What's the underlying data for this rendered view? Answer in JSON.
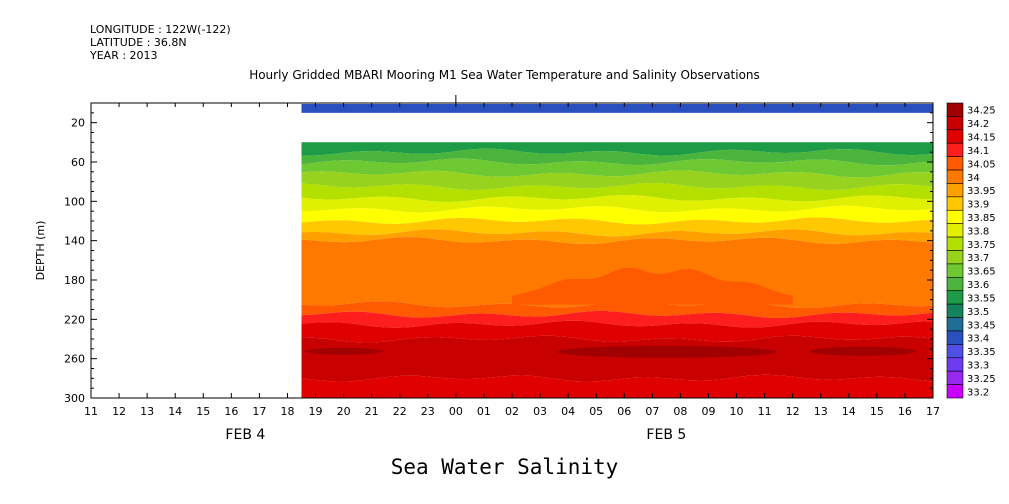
{
  "header": {
    "longitude": "LONGITUDE : 122W(-122)",
    "latitude": "LATITUDE : 36.8N",
    "year": "YEAR : 2013",
    "title": "Hourly Gridded MBARI Mooring M1 Sea Water Temperature and Salinity Observations"
  },
  "footer": {
    "title": "Sea Water Salinity"
  },
  "chart_data": {
    "type": "heatmap",
    "title": "Hourly Gridded MBARI Mooring M1 Sea Water Temperature and Salinity Observations",
    "variable": "Sea Water Salinity",
    "ylabel": "DEPTH (m)",
    "yaxis_inverted": true,
    "ylim": [
      0,
      300
    ],
    "y_ticks": [
      20,
      60,
      100,
      140,
      180,
      220,
      260,
      300
    ],
    "x_ticks": [
      "11",
      "12",
      "13",
      "14",
      "15",
      "16",
      "17",
      "18",
      "19",
      "20",
      "21",
      "22",
      "23",
      "00",
      "01",
      "02",
      "03",
      "04",
      "05",
      "06",
      "07",
      "08",
      "09",
      "10",
      "11",
      "12",
      "13",
      "14",
      "15",
      "16",
      "17"
    ],
    "date_labels": [
      {
        "label": "FEB  4",
        "hour_index": 5.5
      },
      {
        "label": "FEB  5",
        "hour_index": 20.5
      }
    ],
    "data_start_hour_index": 7.5,
    "top_bin_depth_m": [
      1,
      10
    ],
    "top_bin_value": 33.4,
    "gap_depth_m": [
      10,
      40
    ],
    "colorbar": {
      "levels": [
        "34.25",
        "34.2",
        "34.15",
        "34.1",
        "34.05",
        "34",
        "33.95",
        "33.9",
        "33.85",
        "33.8",
        "33.75",
        "33.7",
        "33.65",
        "33.6",
        "33.55",
        "33.5",
        "33.45",
        "33.4",
        "33.35",
        "33.3",
        "33.25",
        "33.2"
      ],
      "colors": [
        "#a00000",
        "#c80000",
        "#e10000",
        "#ff1e1e",
        "#ff5a00",
        "#ff7800",
        "#ffa000",
        "#ffc800",
        "#ffff00",
        "#e0f000",
        "#b4e000",
        "#96d21e",
        "#6ec832",
        "#4bb43c",
        "#1e9b46",
        "#14825a",
        "#1e6e96",
        "#2a50c0",
        "#5050e6",
        "#6e3cf0",
        "#9628f0",
        "#c800ff"
      ]
    },
    "hours": [
      "19",
      "20",
      "21",
      "22",
      "23",
      "00",
      "01",
      "02",
      "03",
      "04",
      "05",
      "06",
      "07",
      "08",
      "09",
      "10",
      "11",
      "12",
      "13",
      "14",
      "15",
      "16",
      "17"
    ],
    "depth_bands": [
      {
        "depth_top": 40,
        "depth_bottom": 50,
        "value": 33.55
      },
      {
        "depth_top": 50,
        "depth_bottom": 60,
        "value": 33.6
      },
      {
        "depth_top": 60,
        "depth_bottom": 72,
        "value": 33.65
      },
      {
        "depth_top": 72,
        "depth_bottom": 85,
        "value": 33.7
      },
      {
        "depth_top": 85,
        "depth_bottom": 97,
        "value": 33.75
      },
      {
        "depth_top": 97,
        "depth_bottom": 108,
        "value": 33.8
      },
      {
        "depth_top": 108,
        "depth_bottom": 120,
        "value": 33.85
      },
      {
        "depth_top": 120,
        "depth_bottom": 132,
        "value": 33.9
      },
      {
        "depth_top": 132,
        "depth_bottom": 140,
        "value": 33.95
      },
      {
        "depth_top": 140,
        "depth_bottom": 205,
        "value": 34.0
      },
      {
        "depth_top": 205,
        "depth_bottom": 215,
        "value": 34.05
      },
      {
        "depth_top": 215,
        "depth_bottom": 225,
        "value": 34.1
      },
      {
        "depth_top": 225,
        "depth_bottom": 240,
        "value": 34.15
      },
      {
        "depth_top": 240,
        "depth_bottom": 280,
        "value": 34.2
      },
      {
        "depth_top": 280,
        "depth_bottom": 300,
        "value": 34.15
      }
    ],
    "features": [
      {
        "name": "34.05 tongue",
        "hours": [
          "02",
          "12"
        ],
        "depth_range": [
          170,
          205
        ],
        "value": 34.05
      },
      {
        "name": "34.25 core (early)",
        "hours": [
          "19",
          "21"
        ],
        "depth_range": [
          250,
          255
        ],
        "value": 34.25
      },
      {
        "name": "34.25 core (mid)",
        "hours": [
          "04",
          "11"
        ],
        "depth_range": [
          248,
          258
        ],
        "value": 34.25
      },
      {
        "name": "34.25 core (late)",
        "hours": [
          "13",
          "16"
        ],
        "depth_range": [
          249,
          256
        ],
        "value": 34.25
      }
    ]
  }
}
